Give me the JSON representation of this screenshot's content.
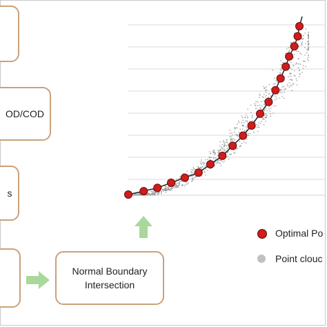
{
  "boxes": {
    "box1": {
      "text": ""
    },
    "box2": {
      "text": "OD/COD"
    },
    "box3": {
      "text": "s"
    },
    "box4": {
      "text": ""
    },
    "box5": {
      "line1": "Normal Boundary",
      "line2": "Intersection"
    }
  },
  "legend": {
    "optimal_label": "Optimal Po",
    "cloud_label": "Point clouc",
    "optimal_color": "#d01c1c",
    "cloud_color": "#c0c0c0"
  },
  "colors": {
    "box_border": "#caa07a",
    "arrow_fill": "#a9d89a",
    "grid": "#d9d9d9",
    "curve": "#222222"
  },
  "chart_data": {
    "type": "scatter",
    "grid": true,
    "series": [
      {
        "marker": "red-circle",
        "x": [
          0.0,
          0.09,
          0.17,
          0.25,
          0.33,
          0.41,
          0.48,
          0.55,
          0.61,
          0.67,
          0.72,
          0.77,
          0.82,
          0.86,
          0.89,
          0.92,
          0.94,
          0.97,
          0.99,
          1.0
        ],
        "y": [
          0.0,
          0.02,
          0.04,
          0.07,
          0.1,
          0.13,
          0.18,
          0.23,
          0.29,
          0.35,
          0.41,
          0.48,
          0.55,
          0.62,
          0.69,
          0.76,
          0.82,
          0.88,
          0.94,
          1.0
        ]
      },
      {
        "marker": "grey-point-cloud",
        "count": 900
      }
    ]
  }
}
